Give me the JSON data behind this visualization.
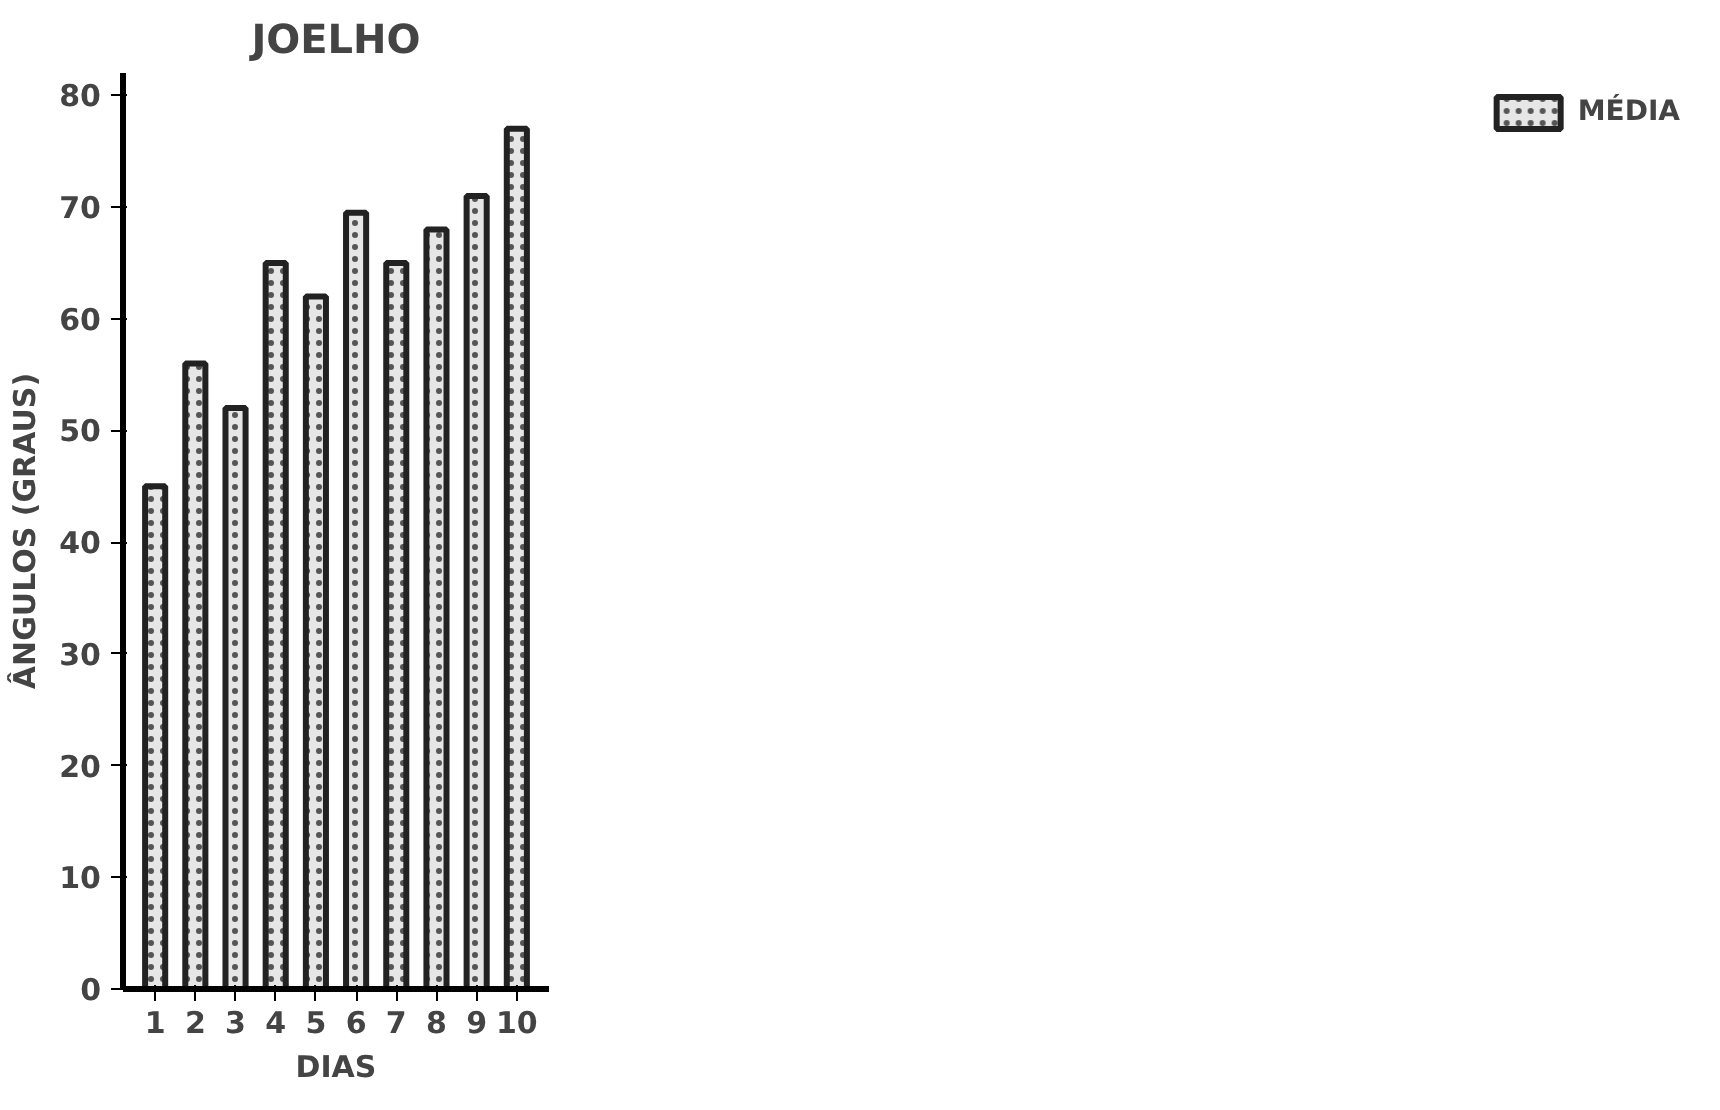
{
  "chart_data": {
    "type": "bar",
    "title": "JOELHO",
    "xlabel": "DIAS",
    "ylabel": "ÂNGULOS (GRAUS)",
    "categories": [
      "1",
      "2",
      "3",
      "4",
      "5",
      "6",
      "7",
      "8",
      "9",
      "10"
    ],
    "series": [
      {
        "name": "MÉDIA",
        "color": "#e6e6e6",
        "values": [
          45,
          56,
          52,
          65,
          62,
          69.5,
          65,
          68,
          71,
          77
        ]
      }
    ],
    "ylim": [
      0,
      82
    ],
    "yticks": [
      0,
      10,
      20,
      30,
      40,
      50,
      60,
      70,
      80
    ],
    "grid": false,
    "legend": "top right"
  }
}
